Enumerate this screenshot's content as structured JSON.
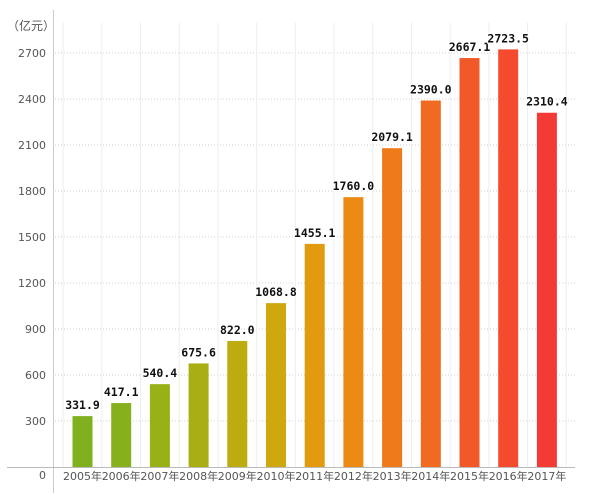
{
  "chart_data": {
    "type": "bar",
    "unit": "（亿元）",
    "categories": [
      "2005年",
      "2006年",
      "2007年",
      "2008年",
      "2009年",
      "2010年",
      "2011年",
      "2012年",
      "2013年",
      "2014年",
      "2015年",
      "2016年",
      "2017年"
    ],
    "values": [
      331.9,
      417.1,
      540.4,
      675.6,
      822.0,
      1068.8,
      1455.1,
      1760.0,
      2079.1,
      2390.0,
      2667.1,
      2723.5,
      2310.4
    ],
    "value_labels": [
      "331.9",
      "417.1",
      "540.4",
      "675.6",
      "822.0",
      "1068.8",
      "1455.1",
      "1760.0",
      "2079.1",
      "2390.0",
      "2667.1",
      "2723.5",
      "2310.4"
    ],
    "bar_colors": [
      "#7fb11f",
      "#87b11b",
      "#98b116",
      "#a9ae13",
      "#bcac10",
      "#cfa70e",
      "#e29a0e",
      "#eb8a14",
      "#ee7a1a",
      "#f06b20",
      "#f15a28",
      "#f44a2e",
      "#f43a34"
    ],
    "ylim": [
      0,
      2950
    ],
    "yticks": [
      0,
      300,
      600,
      900,
      1200,
      1500,
      1800,
      2100,
      2400,
      2700
    ],
    "ytick_labels": [
      "0",
      "300",
      "600",
      "900",
      "1200",
      "1500",
      "1800",
      "2100",
      "2400",
      "2700"
    ],
    "grid": true,
    "legend": "none"
  }
}
